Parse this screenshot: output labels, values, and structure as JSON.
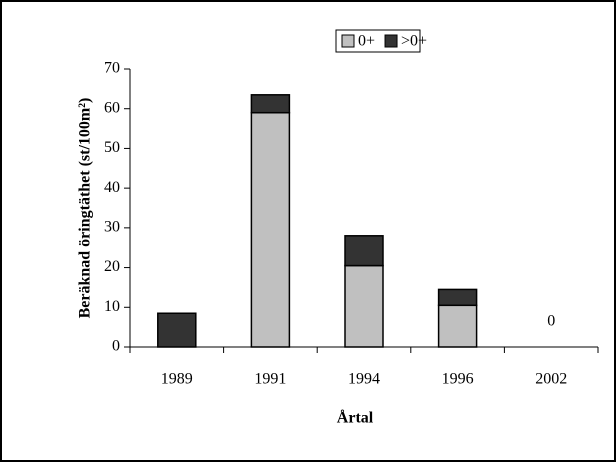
{
  "chart_data": {
    "type": "stacked_bar",
    "categories": [
      "1989",
      "1991",
      "1994",
      "1996",
      "2002"
    ],
    "series": [
      {
        "name": "0+",
        "color": "#c0c0c0",
        "values": [
          0,
          59,
          20.5,
          10.5,
          0
        ]
      },
      {
        "name": ">0+",
        "color": "#333333",
        "values": [
          8.5,
          4.5,
          7.5,
          4,
          0
        ]
      }
    ],
    "ylim": [
      0,
      70
    ],
    "yticks": [
      0,
      10,
      20,
      30,
      40,
      50,
      60,
      70
    ],
    "y_label": "Beräknad öringtäthet (st/100m²)",
    "x_label": "Årtal",
    "annotations": [
      "0"
    ],
    "legend": "top"
  }
}
